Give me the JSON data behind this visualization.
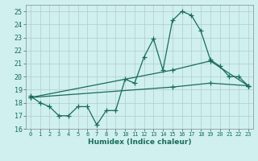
{
  "xlabel": "Humidex (Indice chaleur)",
  "bg_color": "#cff0ee",
  "grid_color": "#b0cccc",
  "line_color": "#1a6b5a",
  "xlim": [
    -0.5,
    23.5
  ],
  "ylim": [
    16,
    25.5
  ],
  "xticks": [
    0,
    1,
    2,
    3,
    4,
    5,
    6,
    7,
    8,
    9,
    10,
    11,
    12,
    13,
    14,
    15,
    16,
    17,
    18,
    19,
    20,
    21,
    22,
    23
  ],
  "yticks": [
    16,
    17,
    18,
    19,
    20,
    21,
    22,
    23,
    24,
    25
  ],
  "series1_x": [
    0,
    1,
    2,
    3,
    4,
    5,
    6,
    7,
    8,
    9,
    10,
    11,
    12,
    13,
    14,
    15,
    16,
    17,
    18,
    19,
    20,
    21,
    22,
    23
  ],
  "series1_y": [
    18.5,
    18.0,
    17.7,
    17.0,
    17.0,
    17.7,
    17.7,
    16.3,
    17.4,
    17.4,
    19.8,
    19.5,
    21.5,
    22.9,
    20.5,
    24.3,
    25.0,
    24.7,
    23.5,
    21.3,
    20.8,
    20.0,
    20.0,
    19.3
  ],
  "series2_x": [
    0,
    15,
    19,
    23
  ],
  "series2_y": [
    18.4,
    19.2,
    19.5,
    19.3
  ],
  "series3_x": [
    0,
    15,
    19,
    23
  ],
  "series3_y": [
    18.4,
    20.5,
    21.2,
    19.3
  ],
  "marker": "+",
  "markersize": 4,
  "linewidth": 0.9
}
